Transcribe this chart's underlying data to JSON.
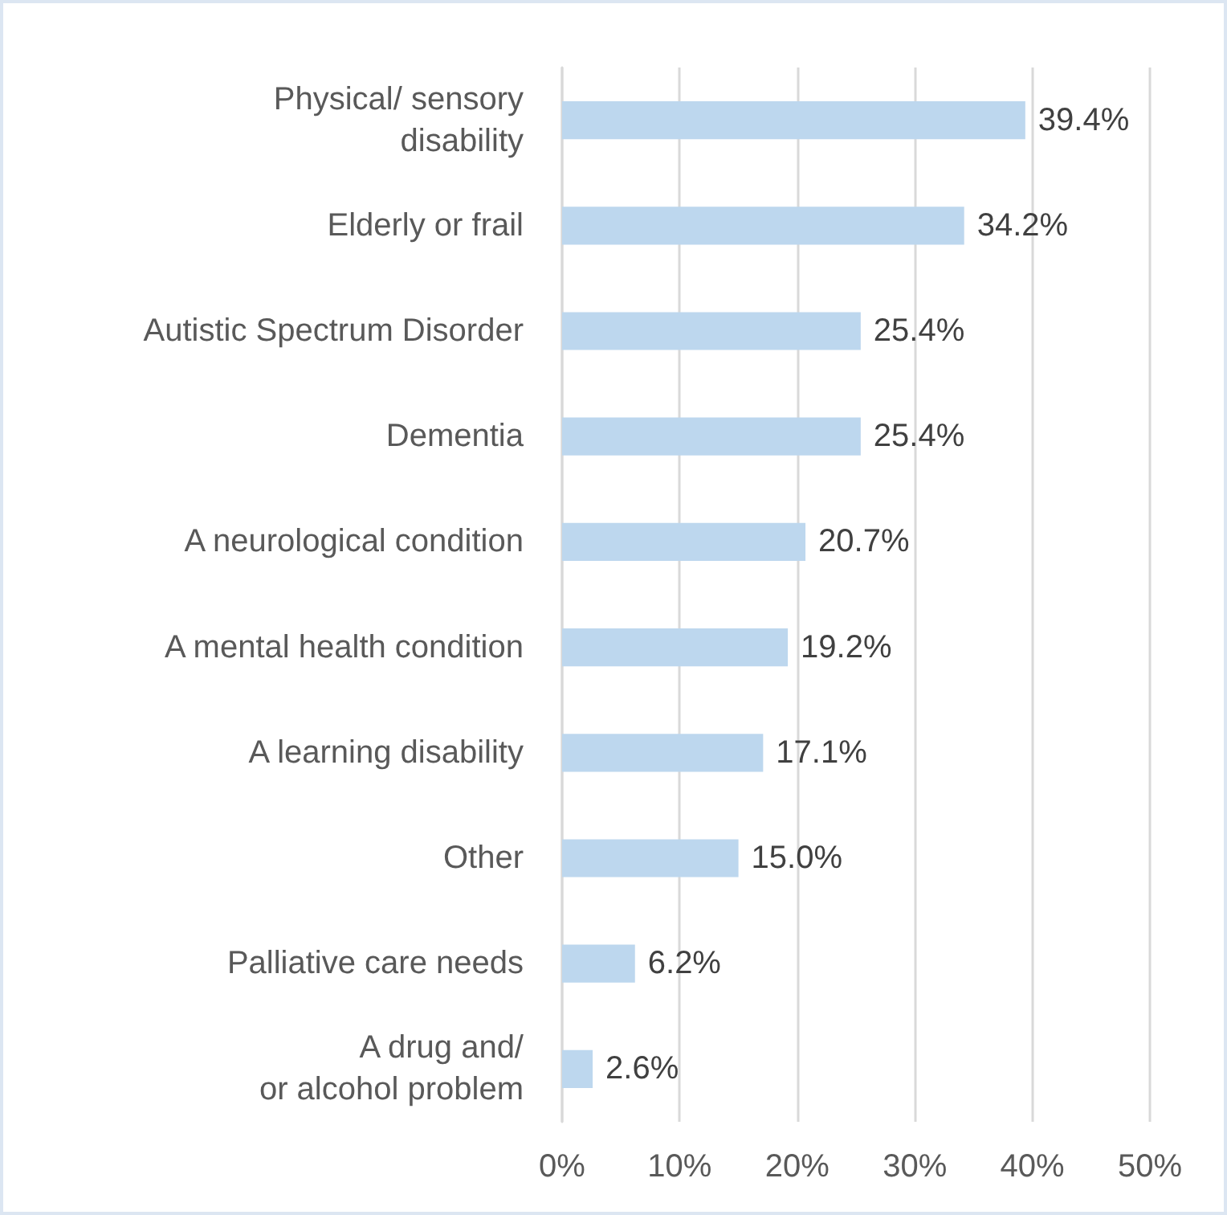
{
  "chart_data": {
    "type": "bar",
    "orientation": "horizontal",
    "categories": [
      "Physical/ sensory\ndisability",
      "Elderly or frail",
      "Autistic Spectrum Disorder",
      "Dementia",
      "A neurological condition",
      "A mental health condition",
      "A learning disability",
      "Other",
      "Palliative care needs",
      "A drug and/\nor alcohol problem"
    ],
    "values": [
      39.4,
      34.2,
      25.4,
      25.4,
      20.7,
      19.2,
      17.1,
      15.0,
      6.2,
      2.6
    ],
    "value_labels": [
      "39.4%",
      "34.2%",
      "25.4%",
      "25.4%",
      "20.7%",
      "19.2%",
      "17.1%",
      "15.0%",
      "6.2%",
      "2.6%"
    ],
    "color": "#bdd7ee",
    "xlim": [
      0,
      50
    ],
    "xticks": [
      {
        "value": 0,
        "label": "0%"
      },
      {
        "value": 10,
        "label": "10%"
      },
      {
        "value": 20,
        "label": "20%"
      },
      {
        "value": 30,
        "label": "30%"
      },
      {
        "value": 40,
        "label": "40%"
      },
      {
        "value": 50,
        "label": "50%"
      }
    ],
    "grid": "x"
  }
}
